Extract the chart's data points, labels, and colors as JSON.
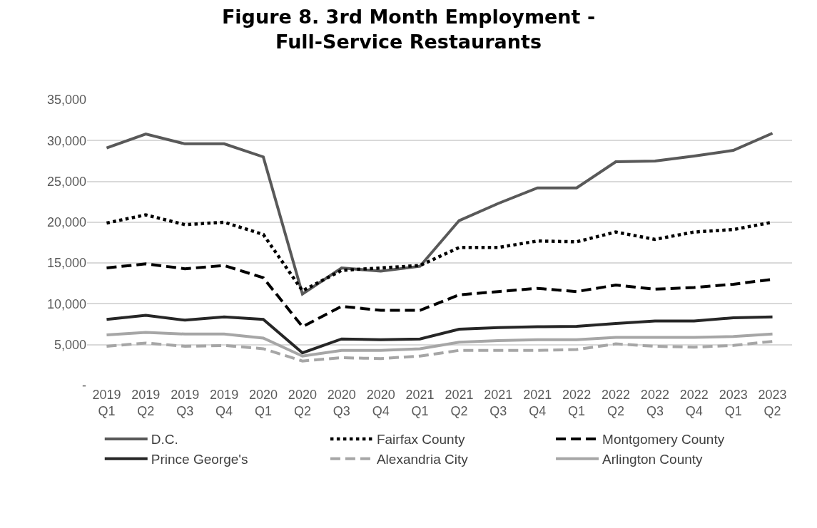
{
  "chart_data": {
    "type": "line",
    "title": "Figure 8. 3rd Month Employment -\nFull-Service Restaurants",
    "categories": [
      "2019 Q1",
      "2019 Q2",
      "2019 Q3",
      "2019 Q4",
      "2020 Q1",
      "2020 Q2",
      "2020 Q3",
      "2020 Q4",
      "2021 Q1",
      "2021 Q2",
      "2021 Q3",
      "2021 Q4",
      "2022 Q1",
      "2022 Q2",
      "2022 Q3",
      "2022 Q4",
      "2023 Q1",
      "2023 Q2"
    ],
    "series": [
      {
        "name": "D.C.",
        "color": "#595959",
        "line_style": "solid",
        "values": [
          29100,
          30800,
          29600,
          29600,
          28000,
          11200,
          14400,
          14000,
          14600,
          20200,
          22300,
          24200,
          24200,
          27400,
          27500,
          28100,
          28800,
          30900
        ]
      },
      {
        "name": "Fairfax County",
        "color": "#000000",
        "line_style": "dotted",
        "values": [
          19900,
          20900,
          19700,
          20000,
          18500,
          11600,
          14100,
          14400,
          14700,
          16900,
          16900,
          17700,
          17600,
          18800,
          17900,
          18800,
          19100,
          20000
        ]
      },
      {
        "name": "Montgomery County",
        "color": "#000000",
        "line_style": "dashed",
        "values": [
          14400,
          14900,
          14300,
          14700,
          13200,
          7200,
          9700,
          9200,
          9200,
          11100,
          11500,
          11900,
          11500,
          12300,
          11800,
          12000,
          12400,
          13000
        ]
      },
      {
        "name": "Prince George's",
        "color": "#262626",
        "line_style": "solid",
        "values": [
          8100,
          8600,
          8000,
          8400,
          8100,
          4000,
          5700,
          5600,
          5700,
          6900,
          7100,
          7200,
          7250,
          7600,
          7900,
          7900,
          8300,
          8400
        ]
      },
      {
        "name": "Alexandria City",
        "color": "#a6a6a6",
        "line_style": "dashed",
        "values": [
          4800,
          5200,
          4800,
          4900,
          4500,
          3000,
          3400,
          3300,
          3600,
          4300,
          4300,
          4300,
          4400,
          5100,
          4800,
          4700,
          4900,
          5400
        ]
      },
      {
        "name": "Arlington County",
        "color": "#a6a6a6",
        "line_style": "solid",
        "values": [
          6200,
          6500,
          6300,
          6300,
          5800,
          3600,
          4300,
          4300,
          4500,
          5300,
          5500,
          5600,
          5600,
          5900,
          5900,
          5900,
          6000,
          6300
        ]
      }
    ],
    "ylim": [
      0,
      35000
    ],
    "yticks": [
      {
        "value": 0,
        "label": "-"
      },
      {
        "value": 5000,
        "label": "5,000"
      },
      {
        "value": 10000,
        "label": "10,000"
      },
      {
        "value": 15000,
        "label": "15,000"
      },
      {
        "value": 20000,
        "label": "20,000"
      },
      {
        "value": 25000,
        "label": "25,000"
      },
      {
        "value": 30000,
        "label": "30,000"
      },
      {
        "value": 35000,
        "label": "35,000"
      }
    ],
    "grid": "y",
    "legend": "bottom",
    "marker": "none"
  }
}
